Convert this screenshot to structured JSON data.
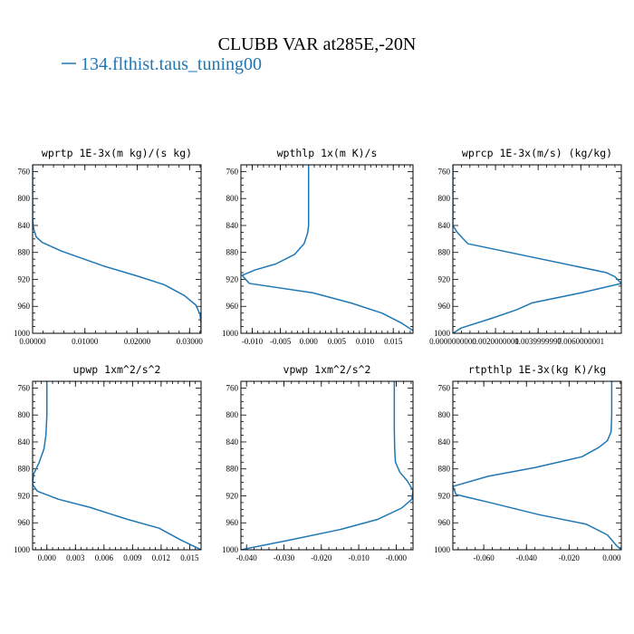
{
  "title": "CLUBB VAR at285E,-20N",
  "legend": {
    "label": "134.flthist.taus_tuning00",
    "color": "#1f77b4"
  },
  "chart_data": [
    {
      "type": "line",
      "title": "wprtp  1E-3x(m kg)/(s kg)",
      "xlim": [
        0.0,
        0.0322
      ],
      "ylim": [
        1000,
        750
      ],
      "xticks": [
        0.0,
        0.01,
        0.02,
        0.03
      ],
      "xtick_labels": [
        "0.00000",
        "0.01000",
        "0.02000",
        "0.03000"
      ],
      "yticks": [
        760,
        800,
        840,
        880,
        920,
        960,
        1000
      ],
      "ytick_labels": [
        "760",
        "800",
        "840",
        "880",
        "920",
        "960",
        "1000"
      ],
      "series": [
        {
          "name": "134.flthist.taus_tuning00",
          "x": [
            0.0,
            0.0,
            0.0,
            0.0,
            0.0002,
            0.0007,
            0.0018,
            0.0055,
            0.0135,
            0.02,
            0.0252,
            0.029,
            0.0312,
            0.032,
            0.0322,
            0.0322
          ],
          "y": [
            750,
            780,
            810,
            830,
            845,
            857,
            865,
            878,
            900,
            915,
            928,
            944,
            958,
            972,
            985,
            1000
          ]
        }
      ]
    },
    {
      "type": "line",
      "title": "wpthlp  1x(m K)/s",
      "xlim": [
        -0.012,
        0.0185
      ],
      "ylim": [
        1000,
        750
      ],
      "xticks": [
        -0.01,
        -0.005,
        0.0,
        0.005,
        0.01,
        0.015
      ],
      "xtick_labels": [
        "-0.010",
        "-0.005",
        "0.000",
        "0.005",
        "0.010",
        "0.015"
      ],
      "yticks": [
        760,
        800,
        840,
        880,
        920,
        960,
        1000
      ],
      "ytick_labels": [
        "760",
        "800",
        "840",
        "880",
        "920",
        "960",
        "1000"
      ],
      "series": [
        {
          "name": "134.flthist.taus_tuning00",
          "x": [
            0.0,
            0.0,
            0.0,
            0.0,
            -0.0002,
            -0.0008,
            -0.0025,
            -0.0058,
            -0.0095,
            -0.0118,
            -0.0105,
            0.0008,
            0.0075,
            0.013,
            0.0165,
            0.0185
          ],
          "y": [
            750,
            790,
            820,
            840,
            852,
            867,
            883,
            897,
            906,
            914,
            926,
            940,
            955,
            970,
            985,
            996
          ]
        }
      ]
    },
    {
      "type": "line",
      "title": "wprcp  1E-3x(m/s) (kg/kg)",
      "xlim": [
        0.0,
        0.0079
      ],
      "ylim": [
        1000,
        750
      ],
      "xticks": [
        0.0,
        0.002,
        0.004,
        0.006
      ],
      "xtick_labels": [
        "0.0000000000",
        "0.0020000001",
        "0.0039999997",
        "0.0060000001"
      ],
      "yticks": [
        760,
        800,
        840,
        880,
        920,
        960,
        1000
      ],
      "ytick_labels": [
        "760",
        "800",
        "840",
        "880",
        "920",
        "960",
        "1000"
      ],
      "series": [
        {
          "name": "134.flthist.taus_tuning00",
          "x": [
            0.0,
            0.0,
            0.0,
            0.0,
            0.0002,
            0.0007,
            0.0072,
            0.0076,
            0.0079,
            0.006,
            0.0037,
            0.003,
            0.0018,
            0.0004,
            0.0
          ],
          "y": [
            750,
            800,
            825,
            840,
            850,
            867,
            910,
            916,
            926,
            940,
            955,
            965,
            978,
            992,
            1000
          ]
        }
      ]
    },
    {
      "type": "line",
      "title": "upwp  1xm^2/s^2",
      "xlim": [
        -0.0015,
        0.0162
      ],
      "ylim": [
        1000,
        750
      ],
      "xticks": [
        0.0,
        0.003,
        0.006,
        0.009,
        0.012,
        0.015
      ],
      "xtick_labels": [
        "0.000",
        "0.003",
        "0.006",
        "0.009",
        "0.012",
        "0.015"
      ],
      "yticks": [
        760,
        800,
        840,
        880,
        920,
        960,
        1000
      ],
      "ytick_labels": [
        "760",
        "800",
        "840",
        "880",
        "920",
        "960",
        "1000"
      ],
      "series": [
        {
          "name": "134.flthist.taus_tuning00",
          "x": [
            0.0,
            0.0,
            -0.0001,
            -0.0003,
            -0.0008,
            -0.0014,
            -0.0015,
            -0.001,
            0.0012,
            0.0045,
            0.0085,
            0.0118,
            0.014,
            0.0162
          ],
          "y": [
            750,
            800,
            830,
            850,
            870,
            888,
            903,
            913,
            925,
            937,
            955,
            968,
            985,
            1000
          ]
        }
      ]
    },
    {
      "type": "line",
      "title": "vpwp  1xm^2/s^2",
      "xlim": [
        -0.0415,
        0.0045
      ],
      "ylim": [
        1000,
        750
      ],
      "xticks": [
        -0.04,
        -0.03,
        -0.02,
        -0.01,
        0.0
      ],
      "xtick_labels": [
        "-0.040",
        "-0.030",
        "-0.020",
        "-0.010",
        "-0.000"
      ],
      "yticks": [
        760,
        800,
        840,
        880,
        920,
        960,
        1000
      ],
      "ytick_labels": [
        "760",
        "800",
        "840",
        "880",
        "920",
        "960",
        "1000"
      ],
      "series": [
        {
          "name": "134.flthist.taus_tuning00",
          "x": [
            -0.0005,
            -0.0005,
            -0.0004,
            -0.0002,
            0.001,
            0.003,
            0.0045,
            0.0042,
            0.0015,
            -0.005,
            -0.015,
            -0.028,
            -0.0415
          ],
          "y": [
            750,
            820,
            850,
            870,
            885,
            898,
            912,
            925,
            938,
            955,
            970,
            985,
            1000
          ]
        }
      ]
    },
    {
      "type": "line",
      "title": "rtpthlp  1E-3x(kg K)/kg",
      "xlim": [
        -0.0745,
        0.0045
      ],
      "ylim": [
        1000,
        750
      ],
      "xticks": [
        -0.06,
        -0.04,
        -0.02,
        0.0
      ],
      "xtick_labels": [
        "-0.060",
        "-0.040",
        "-0.020",
        "0.000"
      ],
      "yticks": [
        760,
        800,
        840,
        880,
        920,
        960,
        1000
      ],
      "ytick_labels": [
        "760",
        "800",
        "840",
        "880",
        "920",
        "960",
        "1000"
      ],
      "series": [
        {
          "name": "134.flthist.taus_tuning00",
          "x": [
            0.0,
            0.0,
            -0.0003,
            -0.002,
            -0.006,
            -0.014,
            -0.036,
            -0.058,
            -0.0745,
            -0.073,
            -0.057,
            -0.034,
            -0.012,
            -0.002,
            0.002,
            0.0045
          ],
          "y": [
            750,
            800,
            825,
            838,
            848,
            862,
            878,
            891,
            906,
            918,
            930,
            948,
            962,
            978,
            993,
            1000
          ]
        }
      ]
    }
  ]
}
